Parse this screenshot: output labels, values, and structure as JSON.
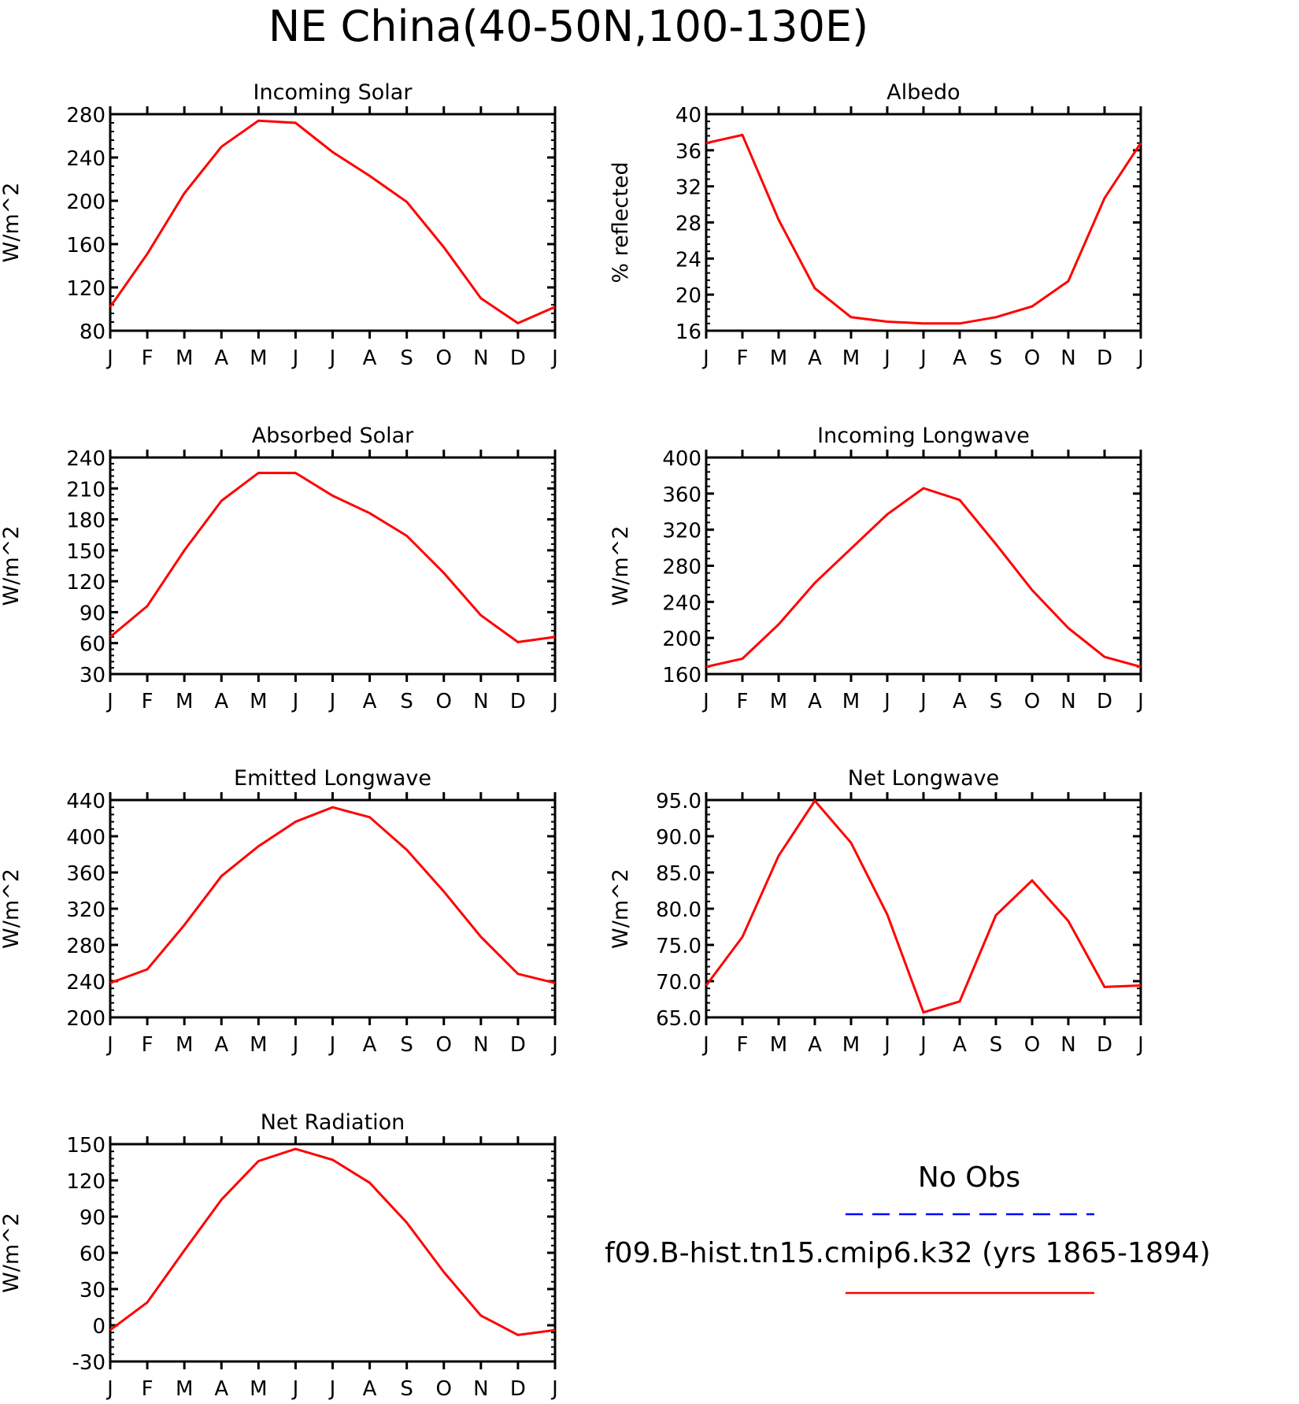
{
  "figure_title": "NE China(40-50N,100-130E)",
  "legend": {
    "entries": [
      {
        "label": "No Obs",
        "color": "#0000ff",
        "style": "dashed"
      },
      {
        "label": "f09.B-hist.tn15.cmip6.k32 (yrs 1865-1894)",
        "color": "#ff0000",
        "style": "solid"
      }
    ]
  },
  "colors": {
    "model": "#ff0000",
    "obs": "#0000ff",
    "axis": "#000000"
  },
  "chart_data": [
    {
      "type": "line",
      "title": "Incoming Solar",
      "ylabel": "W/m^2",
      "x": [
        "J",
        "F",
        "M",
        "A",
        "M",
        "J",
        "J",
        "A",
        "S",
        "O",
        "N",
        "D",
        "J"
      ],
      "ylim": [
        80,
        280
      ],
      "yticks": [
        80,
        120,
        160,
        200,
        240,
        280
      ],
      "ytick_labels": [
        "80",
        "120",
        "160",
        "200",
        "240",
        "280"
      ],
      "series": [
        {
          "values": [
            102,
            151,
            207,
            250,
            274,
            272,
            245,
            223,
            199,
            157,
            110,
            87,
            102
          ]
        }
      ]
    },
    {
      "type": "line",
      "title": "Albedo",
      "ylabel": "% reflected",
      "x": [
        "J",
        "F",
        "M",
        "A",
        "M",
        "J",
        "J",
        "A",
        "S",
        "O",
        "N",
        "D",
        "J"
      ],
      "ylim": [
        16,
        40
      ],
      "yticks": [
        16,
        20,
        24,
        28,
        32,
        36,
        40
      ],
      "ytick_labels": [
        "16",
        "20",
        "24",
        "28",
        "32",
        "36",
        "40"
      ],
      "series": [
        {
          "values": [
            36.8,
            37.7,
            28.3,
            20.7,
            17.5,
            17.0,
            16.8,
            16.8,
            17.5,
            18.7,
            21.5,
            30.7,
            36.8
          ]
        }
      ]
    },
    {
      "type": "line",
      "title": "Absorbed Solar",
      "ylabel": "W/m^2",
      "x": [
        "J",
        "F",
        "M",
        "A",
        "M",
        "J",
        "J",
        "A",
        "S",
        "O",
        "N",
        "D",
        "J"
      ],
      "ylim": [
        30,
        240
      ],
      "yticks": [
        30,
        60,
        90,
        120,
        150,
        180,
        210,
        240
      ],
      "ytick_labels": [
        "30",
        "60",
        "90",
        "120",
        "150",
        "180",
        "210",
        "240"
      ],
      "series": [
        {
          "values": [
            66,
            96,
            150,
            198,
            225,
            225,
            203,
            186,
            164,
            128,
            87,
            61,
            66
          ]
        }
      ]
    },
    {
      "type": "line",
      "title": "Incoming Longwave",
      "ylabel": "W/m^2",
      "x": [
        "J",
        "F",
        "M",
        "A",
        "M",
        "J",
        "J",
        "A",
        "S",
        "O",
        "N",
        "D",
        "J"
      ],
      "ylim": [
        160,
        400
      ],
      "yticks": [
        160,
        200,
        240,
        280,
        320,
        360,
        400
      ],
      "ytick_labels": [
        "160",
        "200",
        "240",
        "280",
        "320",
        "360",
        "400"
      ],
      "series": [
        {
          "values": [
            168,
            177,
            215,
            261,
            299,
            337,
            366,
            353,
            304,
            253,
            211,
            179,
            168
          ]
        }
      ]
    },
    {
      "type": "line",
      "title": "Emitted Longwave",
      "ylabel": "W/m^2",
      "x": [
        "J",
        "F",
        "M",
        "A",
        "M",
        "J",
        "J",
        "A",
        "S",
        "O",
        "N",
        "D",
        "J"
      ],
      "ylim": [
        200,
        440
      ],
      "yticks": [
        200,
        240,
        280,
        320,
        360,
        400,
        440
      ],
      "ytick_labels": [
        "200",
        "240",
        "280",
        "320",
        "360",
        "400",
        "440"
      ],
      "series": [
        {
          "values": [
            238,
            253,
            302,
            356,
            389,
            416,
            432,
            421,
            385,
            339,
            289,
            248,
            238
          ]
        }
      ]
    },
    {
      "type": "line",
      "title": "Net Longwave",
      "ylabel": "W/m^2",
      "x": [
        "J",
        "F",
        "M",
        "A",
        "M",
        "J",
        "J",
        "A",
        "S",
        "O",
        "N",
        "D",
        "J"
      ],
      "ylim": [
        65,
        95
      ],
      "yticks": [
        65,
        70,
        75,
        80,
        85,
        90,
        95
      ],
      "ytick_labels": [
        "65.0",
        "70.0",
        "75.0",
        "80.0",
        "85.0",
        "90.0",
        "95.0"
      ],
      "series": [
        {
          "values": [
            69.4,
            76.1,
            87.3,
            94.9,
            89.1,
            79.2,
            65.7,
            67.2,
            79.1,
            83.9,
            78.3,
            69.2,
            69.4
          ]
        }
      ]
    },
    {
      "type": "line",
      "title": "Net Radiation",
      "ylabel": "W/m^2",
      "x": [
        "J",
        "F",
        "M",
        "A",
        "M",
        "J",
        "J",
        "A",
        "S",
        "O",
        "N",
        "D",
        "J"
      ],
      "ylim": [
        -30,
        150
      ],
      "yticks": [
        -30,
        0,
        30,
        60,
        90,
        120,
        150
      ],
      "ytick_labels": [
        "-30",
        "0",
        "30",
        "60",
        "90",
        "120",
        "150"
      ],
      "series": [
        {
          "values": [
            -4,
            19,
            62,
            104,
            136,
            146,
            137,
            118,
            85,
            44,
            8,
            -8,
            -4
          ]
        }
      ]
    }
  ]
}
